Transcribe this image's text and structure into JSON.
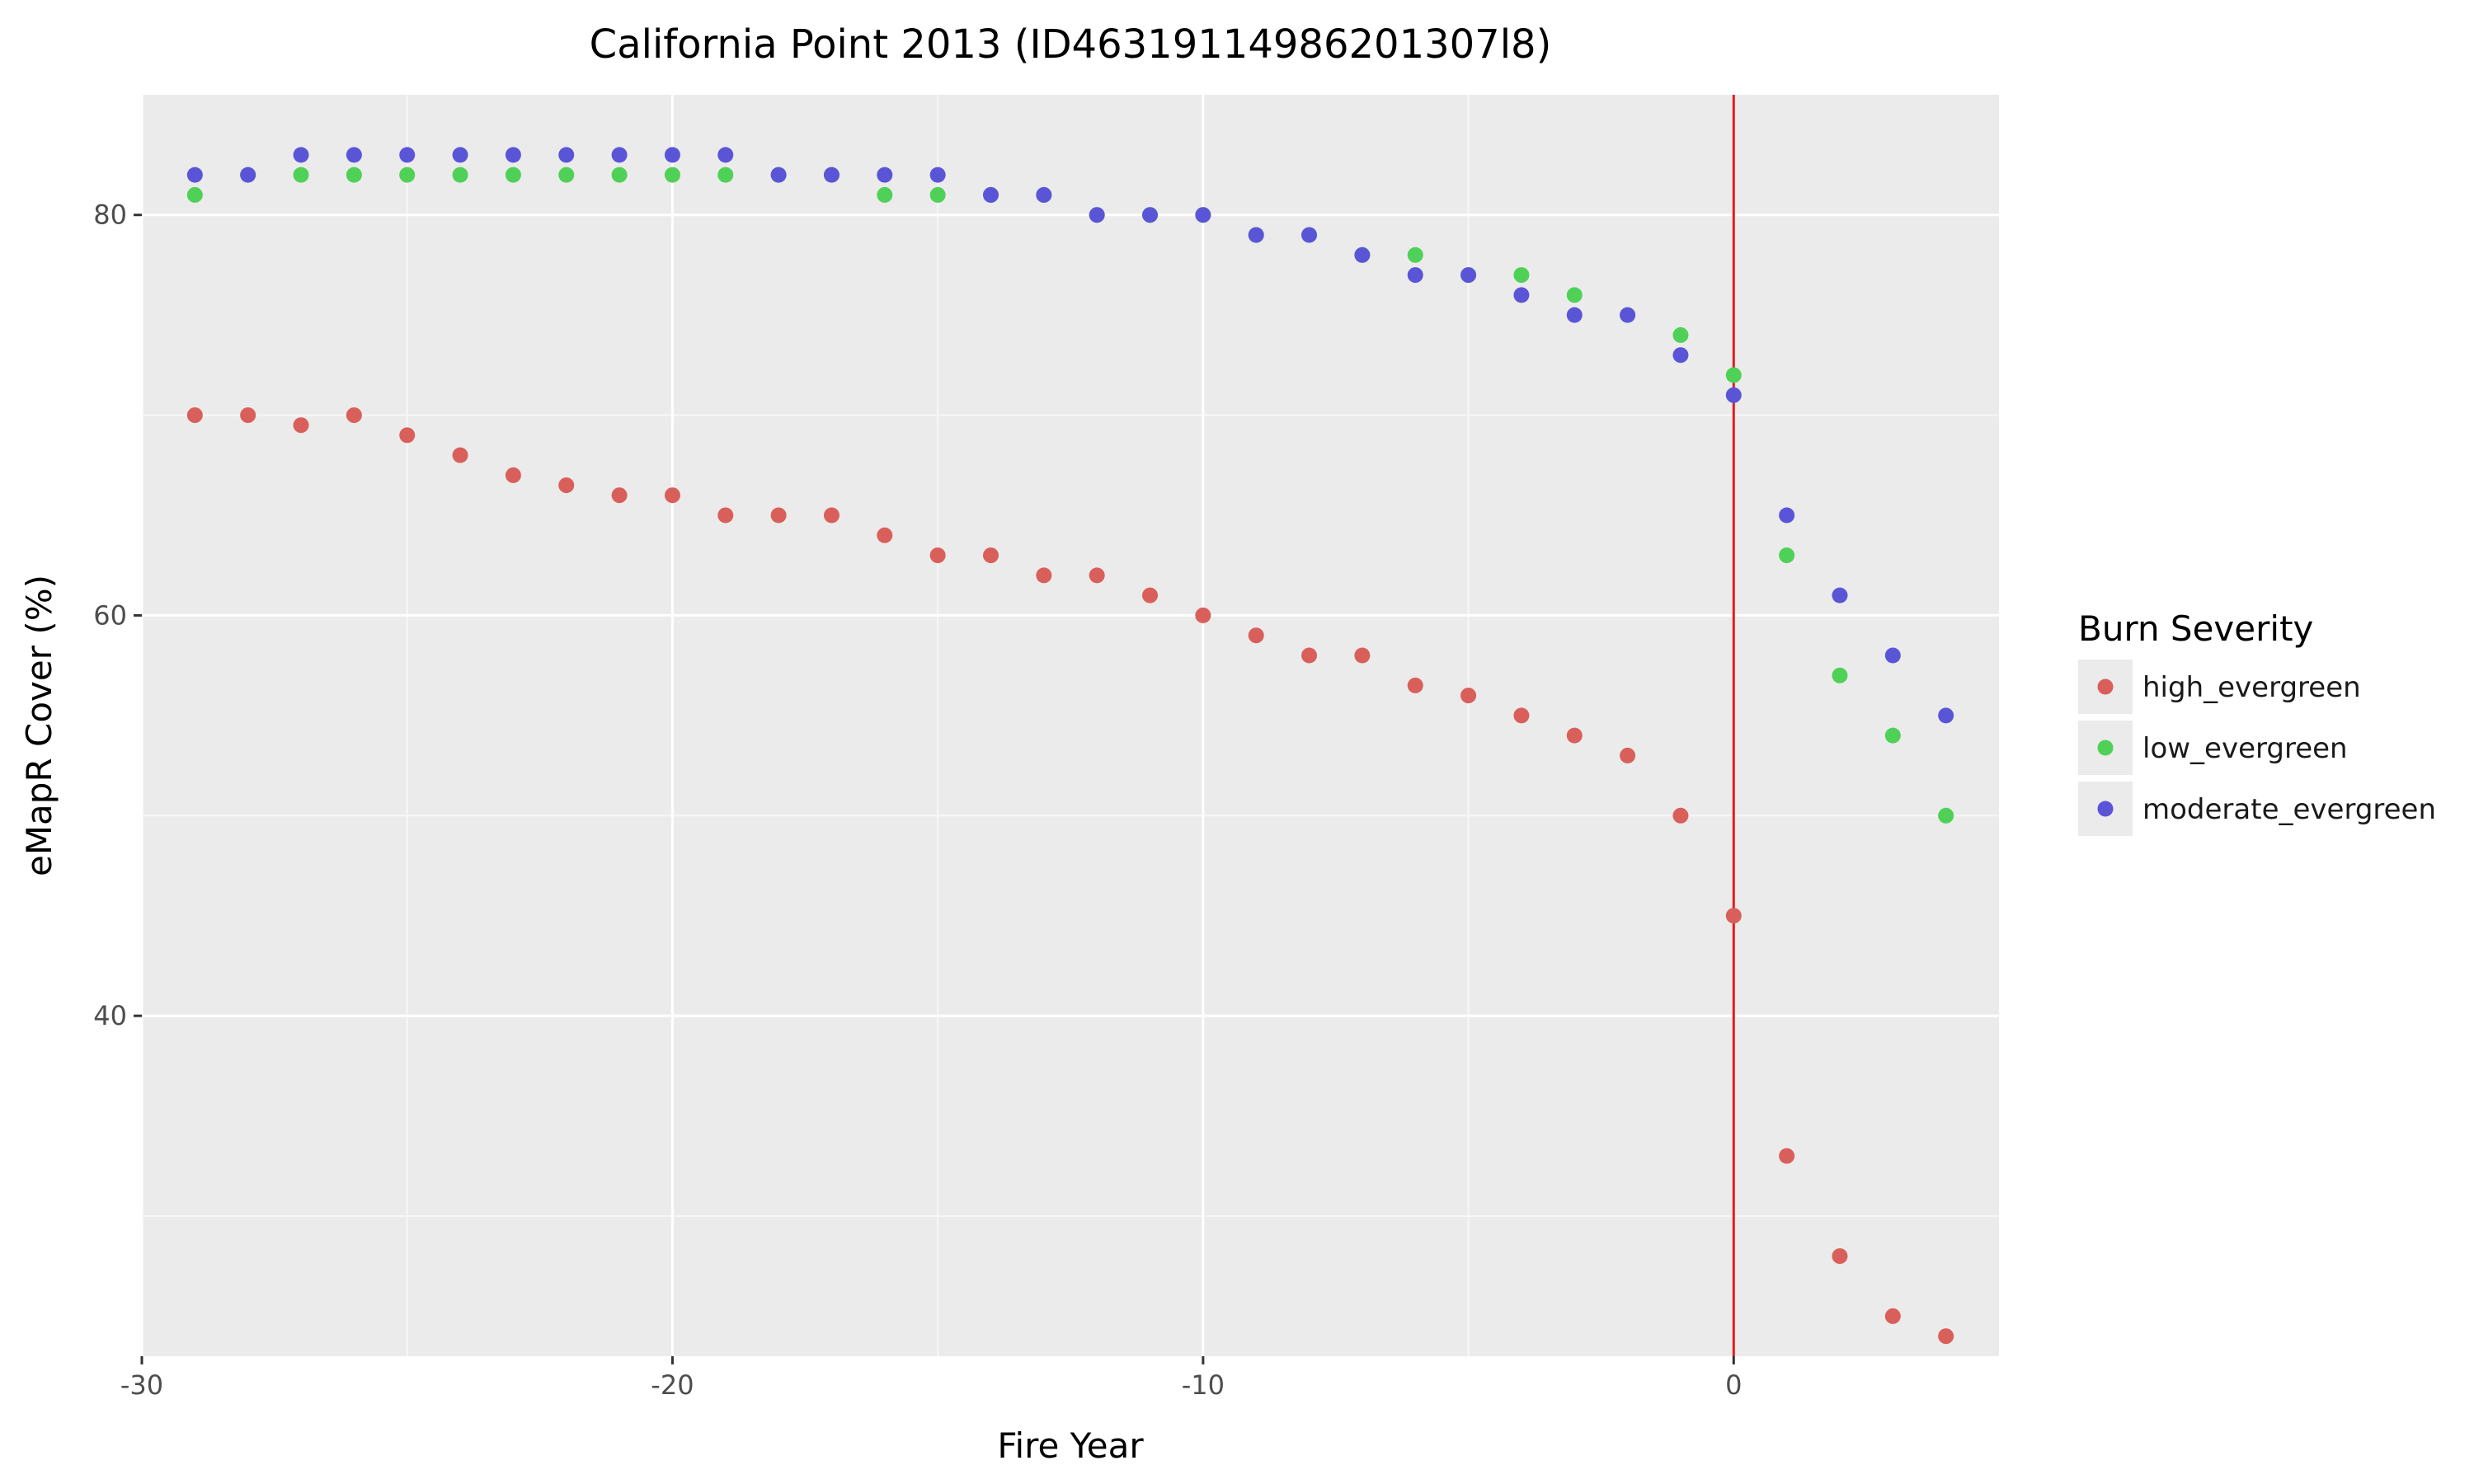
{
  "chart_data": {
    "type": "scatter",
    "title": "California Point 2013 (ID46319114986201307l8)",
    "xlabel": "Fire Year",
    "ylabel": "eMapR Cover (%)",
    "xlim": [
      -30,
      5
    ],
    "ylim": [
      23,
      86
    ],
    "xticks": [
      -30,
      -20,
      -10,
      0
    ],
    "xtick_labels": [
      "-30",
      "-20",
      "-10",
      "0"
    ],
    "yticks": [
      40,
      60,
      80
    ],
    "ytick_labels": [
      "40",
      "60",
      "80"
    ],
    "grid": true,
    "reference_line": {
      "x": 0,
      "color": "#e31a1c"
    },
    "legend": {
      "title": "Burn Severity",
      "placement": "right"
    },
    "series": [
      {
        "name": "high_evergreen",
        "color": "#d95f5a",
        "x": [
          -29,
          -28,
          -27,
          -26,
          -25,
          -24,
          -23,
          -22,
          -21,
          -20,
          -19,
          -18,
          -17,
          -16,
          -15,
          -14,
          -13,
          -12,
          -11,
          -10,
          -9,
          -8,
          -7,
          -6,
          -5,
          -4,
          -3,
          -2,
          -1,
          0,
          1,
          2,
          3,
          4
        ],
        "y": [
          70,
          70,
          69.5,
          70,
          69,
          68,
          67,
          66.5,
          66,
          66,
          65,
          65,
          65,
          64,
          63,
          63,
          62,
          62,
          61,
          60,
          59,
          58,
          58,
          56.5,
          56,
          55,
          54,
          53,
          50,
          45,
          33,
          28,
          25,
          24
        ]
      },
      {
        "name": "low_evergreen",
        "color": "#4fd157",
        "x": [
          -29,
          -28,
          -27,
          -26,
          -25,
          -24,
          -23,
          -22,
          -21,
          -20,
          -19,
          -18,
          -17,
          -16,
          -15,
          -14,
          -13,
          -12,
          -11,
          -10,
          -9,
          -8,
          -7,
          -6,
          -5,
          -4,
          -3,
          -2,
          -1,
          0,
          1,
          2,
          3,
          4
        ],
        "y": [
          81,
          82,
          82,
          82,
          82,
          82,
          82,
          82,
          82,
          82,
          82,
          82,
          82,
          81,
          81,
          81,
          81,
          80,
          80,
          80,
          79,
          79,
          78,
          78,
          77,
          77,
          76,
          75,
          74,
          72,
          63,
          57,
          54,
          50
        ]
      },
      {
        "name": "moderate_evergreen",
        "color": "#5a55d6",
        "x": [
          -29,
          -28,
          -27,
          -26,
          -25,
          -24,
          -23,
          -22,
          -21,
          -20,
          -19,
          -18,
          -17,
          -16,
          -15,
          -14,
          -13,
          -12,
          -11,
          -10,
          -9,
          -8,
          -7,
          -6,
          -5,
          -4,
          -3,
          -2,
          -1,
          0,
          1,
          2,
          3,
          4
        ],
        "y": [
          82,
          82,
          83,
          83,
          83,
          83,
          83,
          83,
          83,
          83,
          83,
          82,
          82,
          82,
          82,
          81,
          81,
          80,
          80,
          80,
          79,
          79,
          78,
          77,
          77,
          76,
          75,
          75,
          73,
          71,
          65,
          61,
          58,
          55
        ]
      }
    ]
  }
}
